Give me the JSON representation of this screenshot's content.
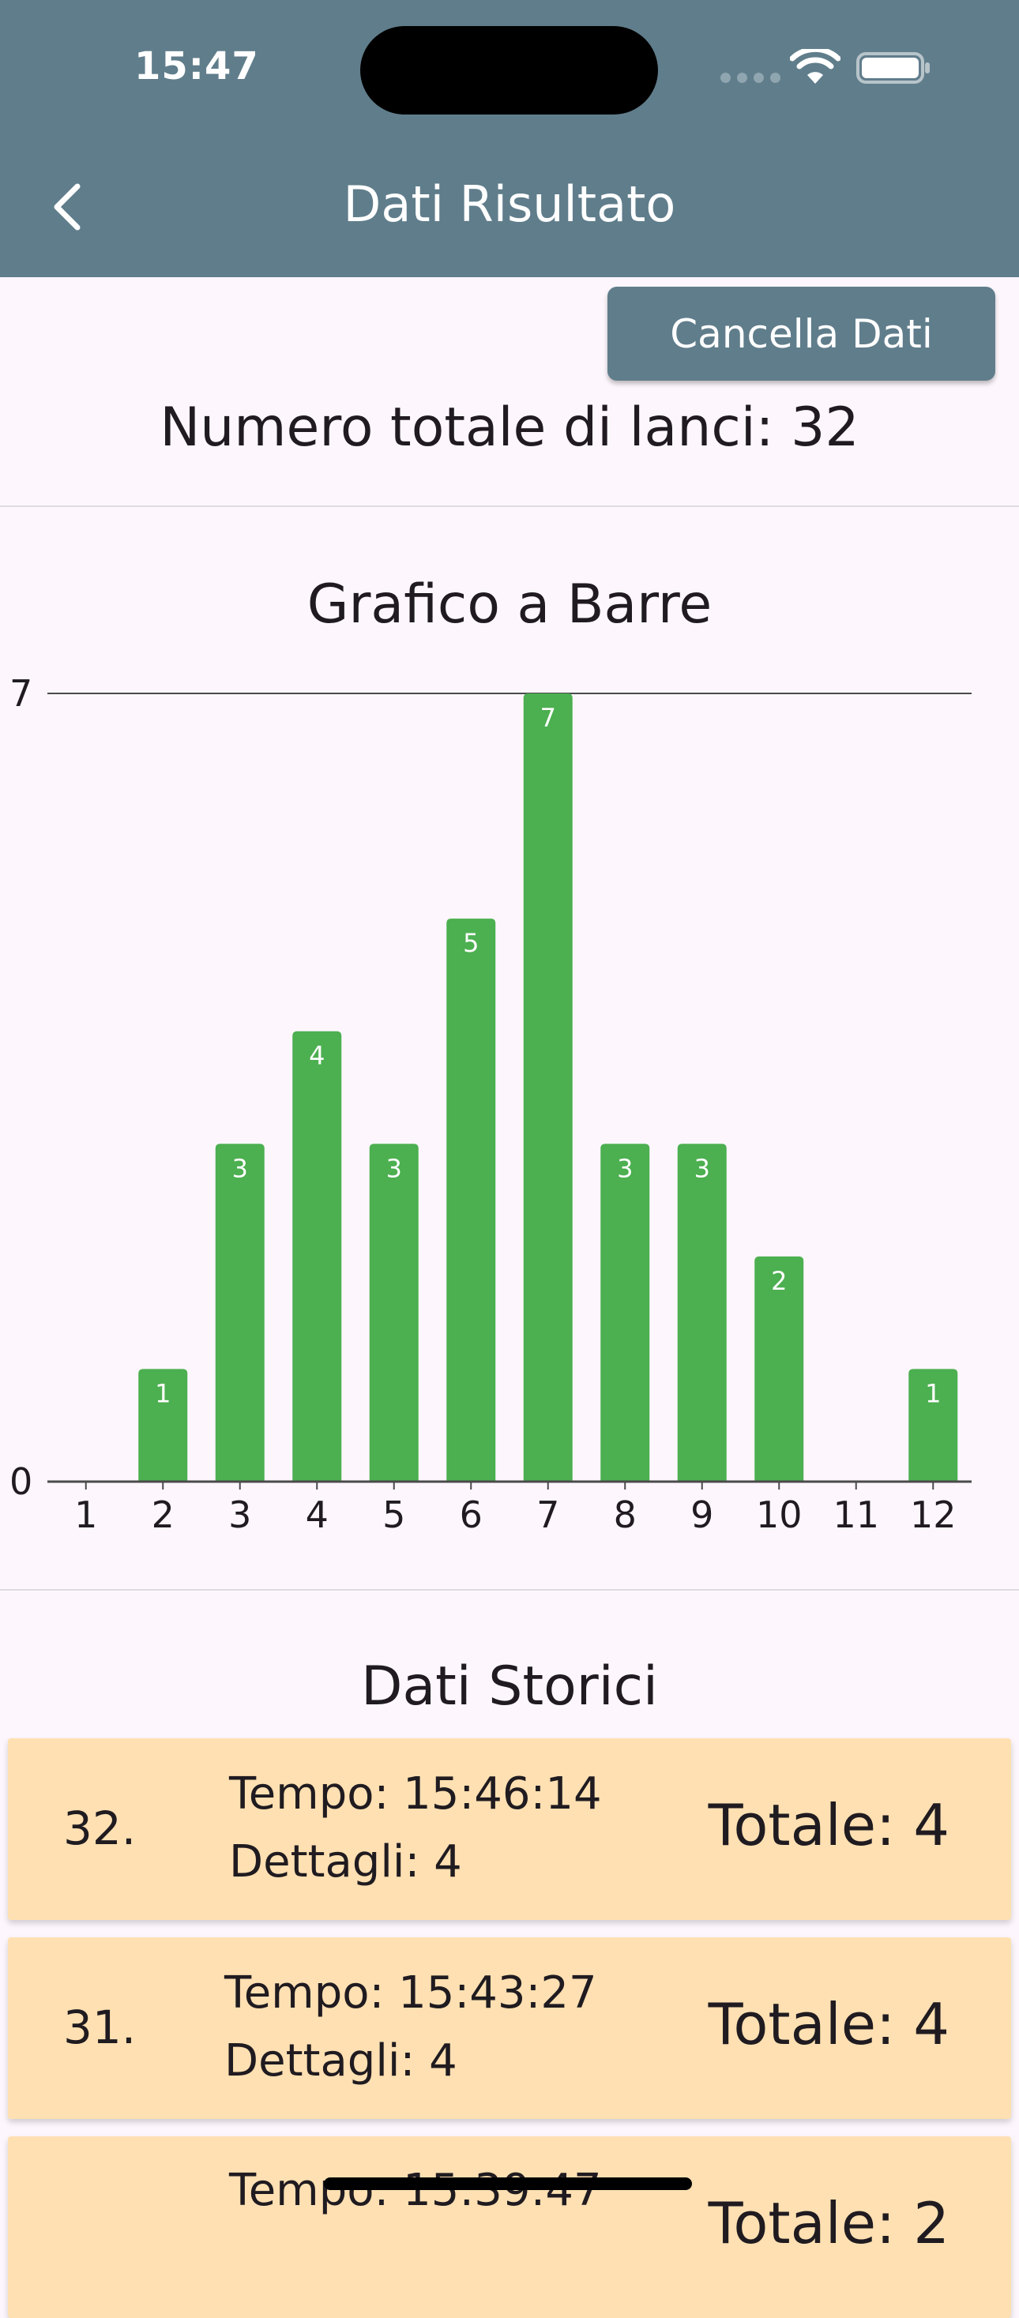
{
  "status_bar": {
    "time": "15:47"
  },
  "appbar": {
    "title": "Dati Risultato",
    "back_icon": "chevron-left-icon",
    "color": "#607d8b"
  },
  "actions": {
    "clear_label": "Cancella Dati"
  },
  "summary": {
    "total_throws_text": "Numero totale di lanci: 32"
  },
  "chart_section": {
    "title": "Grafico a Barre"
  },
  "chart_data": {
    "type": "bar",
    "title": "Grafico a Barre",
    "xlabel": "",
    "ylabel": "",
    "categories": [
      "1",
      "2",
      "3",
      "4",
      "5",
      "6",
      "7",
      "8",
      "9",
      "10",
      "11",
      "12"
    ],
    "values": [
      0,
      1,
      3,
      4,
      3,
      5,
      7,
      3,
      3,
      2,
      0,
      1
    ],
    "ylim": [
      0,
      7
    ],
    "ytick_labels": [
      "0",
      "7"
    ],
    "bar_color": "#4caf50",
    "grid": false
  },
  "history_section": {
    "title": "Dati Storici"
  },
  "history": [
    {
      "index": "32.",
      "time": "Tempo: 15:46:14",
      "details": "Dettagli: 4",
      "total": "Totale: 4"
    },
    {
      "index": "31.",
      "time": "Tempo: 15:43:27",
      "details": "Dettagli: 4",
      "total": "Totale: 4"
    },
    {
      "index": "",
      "time": "Tempo: 15:39:47",
      "details": "",
      "total": "Totale: 2"
    }
  ],
  "colors": {
    "background": "#fdf7fd",
    "card": "#ffe0b2",
    "bar": "#4caf50"
  }
}
